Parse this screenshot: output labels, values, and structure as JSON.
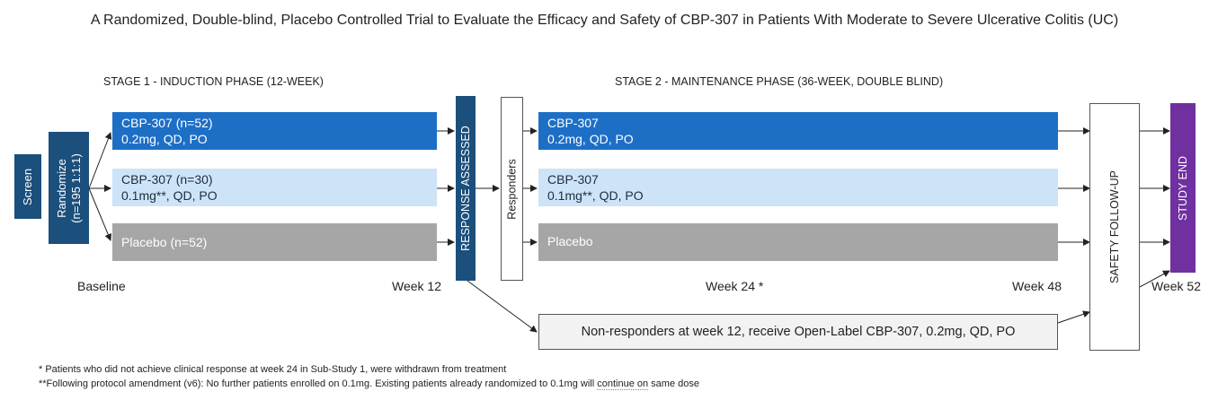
{
  "title": "A Randomized, Double-blind, Placebo Controlled Trial to Evaluate the Efficacy and Safety of CBP-307 in Patients With Moderate to Severe Ulcerative Colitis (UC)",
  "stage1": "STAGE 1 - INDUCTION PHASE (12-WEEK)",
  "stage2": "STAGE 2 - MAINTENANCE PHASE (36-WEEK, DOUBLE BLIND)",
  "screen": "Screen",
  "randomize": {
    "line1": "Randomize",
    "line2": "(n=195 1:1:1)"
  },
  "induction": [
    {
      "line1": "CBP-307 (n=52)",
      "line2": "0.2mg, QD, PO"
    },
    {
      "line1": "CBP-307 (n=30)",
      "line2": "0.1mg**, QD, PO"
    },
    {
      "line1": "Placebo (n=52)",
      "line2": ""
    }
  ],
  "response_assessed": "RESPONSE ASSESSED",
  "responders": "Responders",
  "maintenance": [
    {
      "line1": "CBP-307",
      "line2": "0.2mg, QD, PO"
    },
    {
      "line1": "CBP-307",
      "line2": "0.1mg**, QD, PO"
    },
    {
      "line1": "Placebo",
      "line2": ""
    }
  ],
  "safety_followup": "SAFETY FOLLOW-UP",
  "study_end": "STUDY END",
  "weeks": {
    "baseline": "Baseline",
    "w12": "Week 12",
    "w24": "Week 24 *",
    "w48": "Week 48",
    "w52": "Week 52"
  },
  "non_responders": "Non-responders at week 12, receive Open-Label CBP-307, 0.2mg, QD, PO",
  "footnote1": "* Patients who did not achieve clinical response at week 24 in Sub-Study 1, were withdrawn from treatment",
  "footnote2": {
    "main": "**Following protocol amendment (v6): No further patients enrolled on 0.1mg. Existing patients already randomized to 0.1mg will ",
    "underlined": "continue on",
    "tail": " same dose"
  },
  "colors": {
    "dark": "#1b4f7c",
    "blue": "#1d6fc6",
    "light": "#cde3f7",
    "gray": "#a6a6a6",
    "purple": "#7030a0"
  }
}
